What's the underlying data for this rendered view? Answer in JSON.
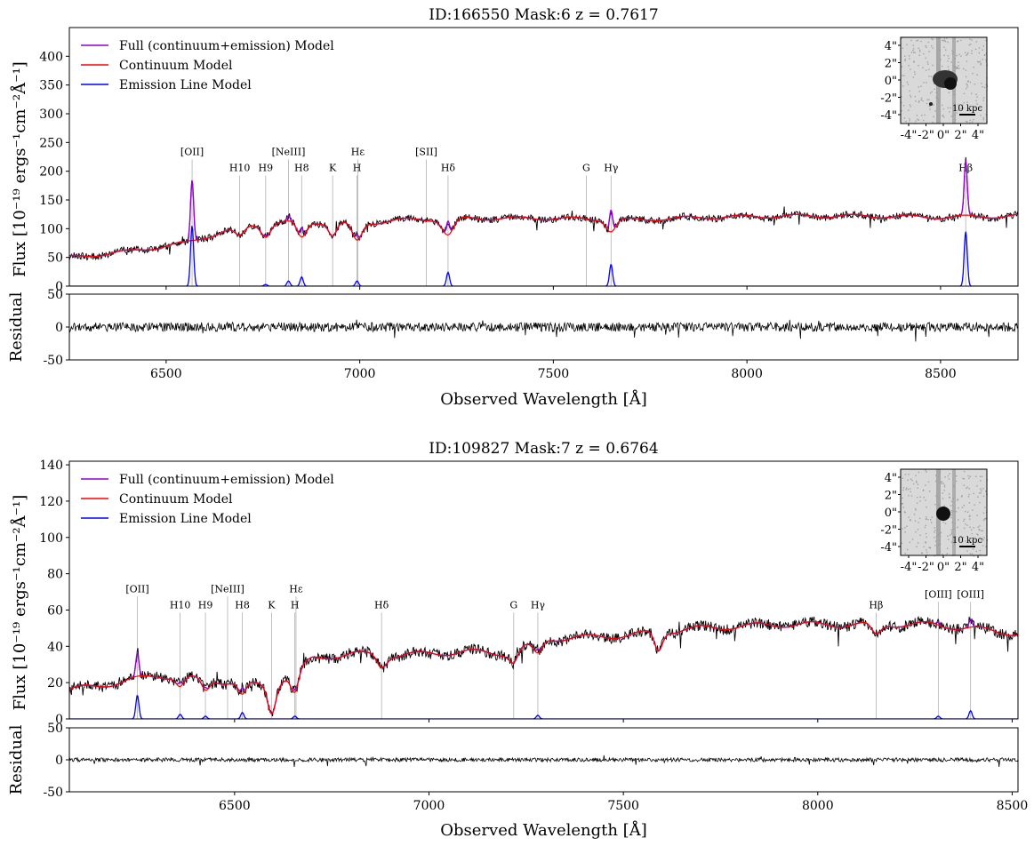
{
  "colors": {
    "full_model": "#9400d3",
    "continuum_model": "#ff0000",
    "emission_model": "#0000ff",
    "data": "#000000",
    "marker_line": "#b0b0b0"
  },
  "legend": {
    "full": "Full (continuum+emission) Model",
    "continuum": "Continuum Model",
    "emission": "Emission Line Model"
  },
  "chart_data": [
    {
      "type": "line",
      "title": "ID:166550  Mask:6  z = 0.7617",
      "xlabel": "Observed Wavelength [Å]",
      "ylabel": "Flux [10⁻¹⁹ ergs⁻¹cm⁻²Å⁻¹]",
      "resid_label": "Residual",
      "xlim": [
        6250,
        8700
      ],
      "ylim": [
        0,
        450
      ],
      "resid_ylim": [
        -50,
        50
      ],
      "xticks": [
        6500,
        7000,
        7500,
        8000,
        8500
      ],
      "yticks": [
        0,
        50,
        100,
        150,
        200,
        250,
        300,
        350,
        400
      ],
      "resid_yticks": [
        -50,
        0,
        50
      ],
      "legend_position": "top-left",
      "inset": {
        "ticks": [
          "4\"",
          "2\"",
          "0\"",
          "-2\"",
          "-4\""
        ],
        "xticks": [
          "-4\"",
          "-2\"",
          "0\"",
          "2\"",
          "4\""
        ],
        "scale_label": "10 kpc"
      },
      "line_markers": [
        {
          "label": "[OII]",
          "x": 6567,
          "row": "high"
        },
        {
          "label": "H10",
          "x": 6690,
          "row": "low"
        },
        {
          "label": "H9",
          "x": 6757,
          "row": "low"
        },
        {
          "label": "[NeIII]",
          "x": 6816,
          "row": "high"
        },
        {
          "label": "H8",
          "x": 6850,
          "row": "low"
        },
        {
          "label": "K",
          "x": 6930,
          "row": "low"
        },
        {
          "label": "Hε",
          "x": 6995,
          "row": "high"
        },
        {
          "label": "H",
          "x": 6993,
          "row": "low"
        },
        {
          "label": "[SII]",
          "x": 7172,
          "row": "high"
        },
        {
          "label": "Hδ",
          "x": 7228,
          "row": "low"
        },
        {
          "label": "G",
          "x": 7585,
          "row": "low"
        },
        {
          "label": "Hγ",
          "x": 7649,
          "row": "low"
        },
        {
          "label": "Hβ",
          "x": 8565,
          "row": "low"
        }
      ],
      "continuum": {
        "x": [
          6250,
          6400,
          6550,
          6650,
          6750,
          6850,
          7000,
          7100,
          7300,
          7500,
          7700,
          7900,
          8100,
          8300,
          8500,
          8700
        ],
        "y": [
          50,
          60,
          75,
          95,
          110,
          112,
          108,
          115,
          118,
          118,
          115,
          120,
          122,
          122,
          120,
          122
        ]
      },
      "absorption": [
        {
          "x": 6690,
          "depth": 15,
          "width": 12
        },
        {
          "x": 6757,
          "depth": 22,
          "width": 12
        },
        {
          "x": 6850,
          "depth": 28,
          "width": 12
        },
        {
          "x": 6930,
          "depth": 22,
          "width": 10
        },
        {
          "x": 6993,
          "depth": 30,
          "width": 12
        },
        {
          "x": 7228,
          "depth": 28,
          "width": 14
        },
        {
          "x": 7649,
          "depth": 20,
          "width": 12
        }
      ],
      "emission": [
        {
          "x": 6567,
          "amp": 105,
          "width": 4
        },
        {
          "x": 6757,
          "amp": 3,
          "width": 4
        },
        {
          "x": 6816,
          "amp": 9,
          "width": 4
        },
        {
          "x": 6850,
          "amp": 16,
          "width": 4
        },
        {
          "x": 6993,
          "amp": 9,
          "width": 4
        },
        {
          "x": 7228,
          "amp": 24,
          "width": 4
        },
        {
          "x": 7649,
          "amp": 38,
          "width": 4
        },
        {
          "x": 8565,
          "amp": 95,
          "width": 4
        }
      ],
      "noise": 6,
      "resid_noise": 7
    },
    {
      "type": "line",
      "title": "ID:109827  Mask:7  z = 0.6764",
      "xlabel": "Observed Wavelength [Å]",
      "ylabel": "Flux [10⁻¹⁹ ergs⁻¹cm⁻²Å⁻¹]",
      "resid_label": "Residual",
      "xlim": [
        6075,
        8515
      ],
      "ylim": [
        0,
        142
      ],
      "resid_ylim": [
        -50,
        50
      ],
      "xticks": [
        6500,
        7000,
        7500,
        8000,
        8500
      ],
      "yticks": [
        0,
        20,
        40,
        60,
        80,
        100,
        120,
        140
      ],
      "resid_yticks": [
        -50,
        0,
        50
      ],
      "legend_position": "top-left",
      "inset": {
        "ticks": [
          "4\"",
          "2\"",
          "0\"",
          "-2\"",
          "-4\""
        ],
        "xticks": [
          "-4\"",
          "-2\"",
          "0\"",
          "2\"",
          "4\""
        ],
        "scale_label": "10 kpc"
      },
      "line_markers": [
        {
          "label": "[OII]",
          "x": 6250,
          "row": "high"
        },
        {
          "label": "H10",
          "x": 6360,
          "row": "low"
        },
        {
          "label": "H9",
          "x": 6425,
          "row": "low"
        },
        {
          "label": "[NeIII]",
          "x": 6482,
          "row": "high"
        },
        {
          "label": "H8",
          "x": 6520,
          "row": "low"
        },
        {
          "label": "K",
          "x": 6595,
          "row": "low"
        },
        {
          "label": "Hε",
          "x": 6658,
          "row": "high"
        },
        {
          "label": "H",
          "x": 6655,
          "row": "low"
        },
        {
          "label": "Hδ",
          "x": 6878,
          "row": "low"
        },
        {
          "label": "G",
          "x": 7218,
          "row": "low"
        },
        {
          "label": "Hγ",
          "x": 7280,
          "row": "low"
        },
        {
          "label": "Hβ",
          "x": 8150,
          "row": "low"
        },
        {
          "label": "[OIII]",
          "x": 8310,
          "row": "mid"
        },
        {
          "label": "[OIII]",
          "x": 8393,
          "row": "mid"
        }
      ],
      "continuum": {
        "x": [
          6075,
          6200,
          6300,
          6400,
          6500,
          6600,
          6700,
          6800,
          6900,
          7000,
          7100,
          7200,
          7300,
          7500,
          7700,
          7900,
          8100,
          8300,
          8515
        ],
        "y": [
          16,
          20,
          24,
          22,
          20,
          18,
          33,
          36,
          35,
          36,
          37,
          36,
          44,
          46,
          50,
          52,
          52,
          52,
          47
        ]
      },
      "absorption": [
        {
          "x": 6360,
          "depth": 5,
          "width": 10
        },
        {
          "x": 6425,
          "depth": 6,
          "width": 10
        },
        {
          "x": 6520,
          "depth": 7,
          "width": 10
        },
        {
          "x": 6595,
          "depth": 14,
          "width": 10
        },
        {
          "x": 6655,
          "depth": 12,
          "width": 10
        },
        {
          "x": 6878,
          "depth": 6,
          "width": 12
        },
        {
          "x": 7218,
          "depth": 6,
          "width": 10
        },
        {
          "x": 7280,
          "depth": 7,
          "width": 12
        },
        {
          "x": 7590,
          "depth": 10,
          "width": 10
        },
        {
          "x": 8150,
          "depth": 6,
          "width": 12
        }
      ],
      "emission": [
        {
          "x": 6250,
          "amp": 13,
          "width": 4
        },
        {
          "x": 6360,
          "amp": 2.5,
          "width": 4
        },
        {
          "x": 6425,
          "amp": 1.5,
          "width": 4
        },
        {
          "x": 6520,
          "amp": 3.5,
          "width": 4
        },
        {
          "x": 6655,
          "amp": 1.5,
          "width": 4
        },
        {
          "x": 7280,
          "amp": 2,
          "width": 4
        },
        {
          "x": 8310,
          "amp": 1.5,
          "width": 4
        },
        {
          "x": 8393,
          "amp": 4.5,
          "width": 4
        }
      ],
      "noise": 3,
      "resid_noise": 3
    }
  ]
}
